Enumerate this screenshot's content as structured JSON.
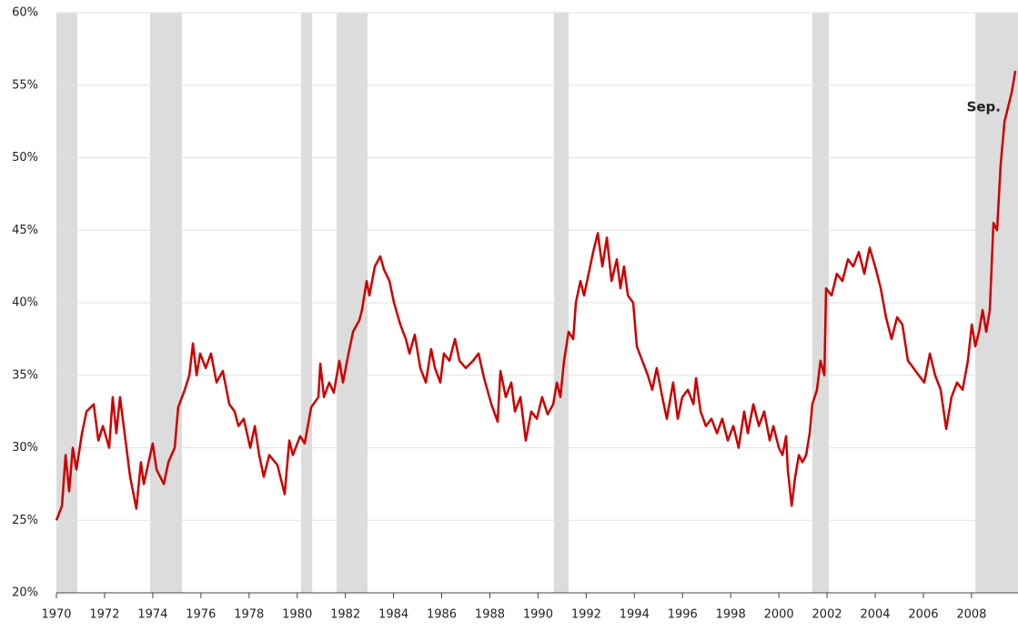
{
  "chart_data": {
    "type": "line",
    "color": "#cc0000",
    "grid": true,
    "annotation": "Sep.",
    "xlim": [
      1970,
      2009.93
    ],
    "ylim": [
      20,
      60
    ],
    "xticks": [
      1970,
      1972,
      1974,
      1976,
      1978,
      1980,
      1982,
      1984,
      1986,
      1988,
      1990,
      1992,
      1994,
      1996,
      1998,
      2000,
      2002,
      2004,
      2006,
      2008
    ],
    "yticks": [
      {
        "value": 20,
        "label": "20%"
      },
      {
        "value": 25,
        "label": "25%"
      },
      {
        "value": 30,
        "label": "30%"
      },
      {
        "value": 35,
        "label": "35%"
      },
      {
        "value": 40,
        "label": "40%"
      },
      {
        "value": 45,
        "label": "45%"
      },
      {
        "value": 50,
        "label": "50%"
      },
      {
        "value": 55,
        "label": "55%"
      },
      {
        "value": 60,
        "label": "60%"
      }
    ],
    "recessions": [
      [
        1970.0,
        1970.87
      ],
      [
        1973.89,
        1975.21
      ],
      [
        1980.16,
        1980.62
      ],
      [
        1981.64,
        1982.92
      ],
      [
        1990.66,
        1991.27
      ],
      [
        2001.39,
        2002.07
      ],
      [
        2008.16,
        2009.93
      ]
    ],
    "x": [
      1970.0,
      1970.23,
      1970.38,
      1970.53,
      1970.68,
      1970.83,
      1971.06,
      1971.25,
      1971.55,
      1971.74,
      1971.93,
      1972.19,
      1972.34,
      1972.49,
      1972.64,
      1972.87,
      1973.06,
      1973.32,
      1973.51,
      1973.63,
      1974.0,
      1974.16,
      1974.46,
      1974.65,
      1974.91,
      1975.06,
      1975.33,
      1975.52,
      1975.67,
      1975.82,
      1975.97,
      1976.2,
      1976.42,
      1976.65,
      1976.91,
      1977.18,
      1977.4,
      1977.56,
      1977.78,
      1978.05,
      1978.24,
      1978.42,
      1978.61,
      1978.84,
      1979.18,
      1979.48,
      1979.67,
      1979.82,
      1980.12,
      1980.31,
      1980.58,
      1980.88,
      1980.96,
      1981.11,
      1981.33,
      1981.52,
      1981.75,
      1981.9,
      1982.13,
      1982.32,
      1982.58,
      1982.69,
      1982.88,
      1983.0,
      1983.22,
      1983.45,
      1983.6,
      1983.83,
      1984.02,
      1984.28,
      1984.51,
      1984.66,
      1984.88,
      1985.11,
      1985.34,
      1985.56,
      1985.72,
      1985.94,
      1986.09,
      1986.32,
      1986.55,
      1986.74,
      1987.0,
      1987.3,
      1987.53,
      1987.76,
      1988.06,
      1988.32,
      1988.44,
      1988.66,
      1988.89,
      1989.04,
      1989.27,
      1989.49,
      1989.72,
      1989.95,
      1990.17,
      1990.4,
      1990.63,
      1990.78,
      1990.93,
      1991.08,
      1991.27,
      1991.46,
      1991.57,
      1991.76,
      1991.91,
      1992.1,
      1992.29,
      1992.48,
      1992.67,
      1992.86,
      1993.05,
      1993.27,
      1993.42,
      1993.57,
      1993.73,
      1993.95,
      1994.1,
      1994.33,
      1994.56,
      1994.74,
      1994.93,
      1995.16,
      1995.35,
      1995.61,
      1995.8,
      1995.99,
      1996.22,
      1996.45,
      1996.56,
      1996.75,
      1996.97,
      1997.2,
      1997.43,
      1997.65,
      1997.88,
      1998.11,
      1998.33,
      1998.56,
      1998.71,
      1998.94,
      1999.17,
      1999.39,
      1999.62,
      1999.77,
      2000.0,
      2000.15,
      2000.3,
      2000.37,
      2000.53,
      2000.68,
      2000.83,
      2000.98,
      2001.13,
      2001.28,
      2001.39,
      2001.58,
      2001.73,
      2001.89,
      2001.96,
      2002.19,
      2002.41,
      2002.64,
      2002.87,
      2003.09,
      2003.32,
      2003.55,
      2003.77,
      2004.0,
      2004.23,
      2004.45,
      2004.68,
      2004.91,
      2005.13,
      2005.36,
      2005.59,
      2005.81,
      2006.04,
      2006.27,
      2006.49,
      2006.72,
      2006.95,
      2007.17,
      2007.4,
      2007.63,
      2007.85,
      2008.01,
      2008.16,
      2008.31,
      2008.46,
      2008.61,
      2008.76,
      2008.91,
      2009.06,
      2009.21,
      2009.37,
      2009.52,
      2009.67,
      2009.82
    ],
    "values": [
      25,
      26,
      29.5,
      27,
      30,
      28.5,
      31,
      32.5,
      33,
      30.5,
      31.5,
      30,
      33.5,
      31,
      33.5,
      30.5,
      28,
      25.8,
      29,
      27.5,
      30.3,
      28.5,
      27.5,
      29,
      30,
      32.8,
      34,
      35,
      37.2,
      35,
      36.5,
      35.5,
      36.5,
      34.5,
      35.3,
      33,
      32.5,
      31.5,
      32,
      30,
      31.5,
      29.5,
      28,
      29.5,
      28.8,
      26.8,
      30.5,
      29.5,
      30.8,
      30.3,
      32.8,
      33.5,
      35.8,
      33.5,
      34.5,
      33.8,
      36,
      34.5,
      36.5,
      38,
      38.8,
      39.5,
      41.5,
      40.5,
      42.5,
      43.2,
      42.3,
      41.5,
      40,
      38.5,
      37.5,
      36.5,
      37.8,
      35.5,
      34.5,
      36.8,
      35.5,
      34.5,
      36.5,
      36,
      37.5,
      36,
      35.5,
      36,
      36.5,
      34.8,
      33,
      31.8,
      35.3,
      33.5,
      34.5,
      32.5,
      33.5,
      30.5,
      32.5,
      32,
      33.5,
      32.3,
      33,
      34.5,
      33.5,
      36,
      38,
      37.5,
      40,
      41.5,
      40.5,
      42,
      43.5,
      44.8,
      42.5,
      44.5,
      41.5,
      43,
      41,
      42.5,
      40.5,
      40,
      37,
      36,
      35,
      34,
      35.5,
      33.5,
      32,
      34.5,
      32,
      33.5,
      34,
      33,
      34.8,
      32.5,
      31.5,
      32,
      31,
      32,
      30.5,
      31.5,
      30,
      32.5,
      31,
      33,
      31.5,
      32.5,
      30.5,
      31.5,
      30,
      29.5,
      30.8,
      28.5,
      26,
      28,
      29.5,
      29,
      29.5,
      31,
      33,
      34,
      36,
      35,
      41,
      40.5,
      42,
      41.5,
      43,
      42.5,
      43.5,
      42,
      43.8,
      42.5,
      41,
      39,
      37.5,
      39,
      38.5,
      36,
      35.5,
      35,
      34.5,
      36.5,
      35,
      34,
      31.3,
      33.5,
      34.5,
      34,
      36,
      38.5,
      37,
      38,
      39.5,
      38,
      39.5,
      45.5,
      45,
      49.5,
      52.5,
      53.5,
      54.5,
      56
    ]
  }
}
